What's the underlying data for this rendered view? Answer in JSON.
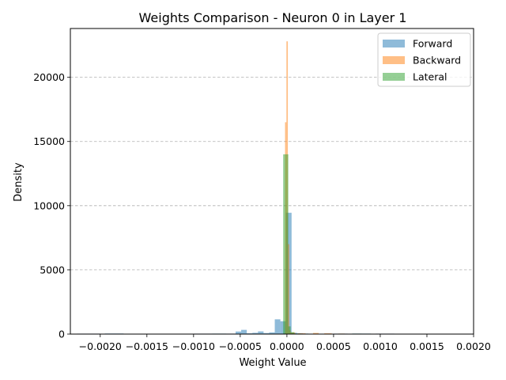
{
  "chart_data": {
    "type": "histogram",
    "title": "Weights Comparison - Neuron 0 in Layer 1",
    "xlabel": "Weight Value",
    "ylabel": "Density",
    "xlim": [
      -0.00232,
      0.002
    ],
    "ylim": [
      0,
      23800
    ],
    "xticks": [
      -0.002,
      -0.0015,
      -0.001,
      -0.0005,
      0.0,
      0.0005,
      0.001,
      0.0015,
      0.002
    ],
    "xtick_labels": [
      "−0.0020",
      "−0.0015",
      "−0.0010",
      "−0.0005",
      "0.0000",
      "0.0005",
      "0.0010",
      "0.0015",
      "0.0020"
    ],
    "yticks": [
      0,
      5000,
      10000,
      15000,
      20000
    ],
    "ytick_labels": [
      "0",
      "5000",
      "10000",
      "15000",
      "20000"
    ],
    "grid": "y-dashed",
    "legend_position": "top-right",
    "series": [
      {
        "name": "Forward",
        "color": "#1f77b4",
        "alpha": 0.5,
        "bins": [
          {
            "x0": -0.00225,
            "x1": -0.002,
            "y": 35
          },
          {
            "x0": -0.00195,
            "x1": -0.00175,
            "y": 45
          },
          {
            "x0": -0.0016,
            "x1": -0.0014,
            "y": 20
          },
          {
            "x0": -0.00135,
            "x1": -0.00115,
            "y": 30
          },
          {
            "x0": -0.001,
            "x1": -0.0008,
            "y": 35
          },
          {
            "x0": -0.0008,
            "x1": -0.00065,
            "y": 40
          },
          {
            "x0": -0.00065,
            "x1": -0.00055,
            "y": 35
          },
          {
            "x0": -0.00055,
            "x1": -0.00049,
            "y": 200
          },
          {
            "x0": -0.00049,
            "x1": -0.00043,
            "y": 330
          },
          {
            "x0": -0.00043,
            "x1": -0.00037,
            "y": 60
          },
          {
            "x0": -0.00037,
            "x1": -0.00031,
            "y": 100
          },
          {
            "x0": -0.00031,
            "x1": -0.00025,
            "y": 210
          },
          {
            "x0": -0.00025,
            "x1": -0.00019,
            "y": 80
          },
          {
            "x0": -0.00019,
            "x1": -0.00013,
            "y": 130
          },
          {
            "x0": -0.00013,
            "x1": -7e-05,
            "y": 1150
          },
          {
            "x0": -7e-05,
            "x1": -1e-05,
            "y": 1000
          },
          {
            "x0": -1e-05,
            "x1": 5e-05,
            "y": 9450
          },
          {
            "x0": 5e-05,
            "x1": 0.00011,
            "y": 100
          },
          {
            "x0": 0.00011,
            "x1": 0.00017,
            "y": 60
          },
          {
            "x0": 0.00017,
            "x1": 0.00023,
            "y": 40
          },
          {
            "x0": 0.0003,
            "x1": 0.00045,
            "y": 30
          },
          {
            "x0": 0.0005,
            "x1": 0.00065,
            "y": 35
          },
          {
            "x0": 0.0007,
            "x1": 0.0009,
            "y": 40
          },
          {
            "x0": 0.00095,
            "x1": 0.00115,
            "y": 35
          },
          {
            "x0": 0.0012,
            "x1": 0.0014,
            "y": 30
          }
        ]
      },
      {
        "name": "Backward",
        "color": "#ff7f0e",
        "alpha": 0.5,
        "bins": [
          {
            "x0": -2e-05,
            "x1": -5e-06,
            "y": 16500
          },
          {
            "x0": -5e-06,
            "x1": 1e-05,
            "y": 22800
          },
          {
            "x0": 1e-05,
            "x1": 2.5e-05,
            "y": 7000
          },
          {
            "x0": 2.5e-05,
            "x1": 4e-05,
            "y": 300
          },
          {
            "x0": 4e-05,
            "x1": 9e-05,
            "y": 120
          },
          {
            "x0": 0.00012,
            "x1": 0.0002,
            "y": 60
          },
          {
            "x0": 0.0002,
            "x1": 0.00025,
            "y": 30
          },
          {
            "x0": 0.00028,
            "x1": 0.00034,
            "y": 90
          },
          {
            "x0": 0.0004,
            "x1": 0.00048,
            "y": 60
          },
          {
            "x0": 0.00055,
            "x1": 0.00062,
            "y": 40
          }
        ]
      },
      {
        "name": "Lateral",
        "color": "#2ca02c",
        "alpha": 0.5,
        "bins": [
          {
            "x0": -4e-05,
            "x1": 1.5e-05,
            "y": 14000
          },
          {
            "x0": 1.5e-05,
            "x1": 4e-05,
            "y": 600
          },
          {
            "x0": 4e-05,
            "x1": 8e-05,
            "y": 150
          },
          {
            "x0": 8e-05,
            "x1": 0.00015,
            "y": 40
          },
          {
            "x0": 0.0007,
            "x1": 0.0008,
            "y": 35
          },
          {
            "x0": 0.0009,
            "x1": 0.001,
            "y": 25
          },
          {
            "x0": 0.00115,
            "x1": 0.00125,
            "y": 20
          }
        ]
      }
    ]
  }
}
